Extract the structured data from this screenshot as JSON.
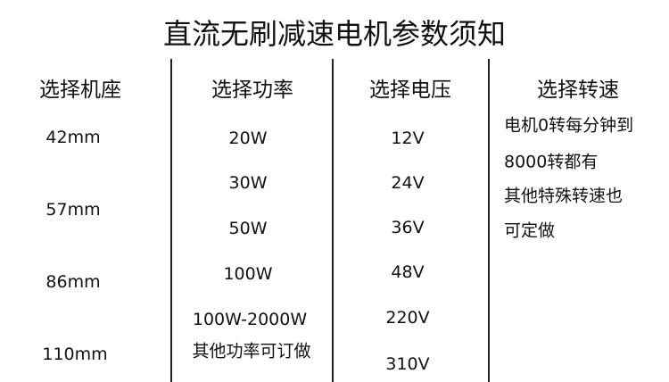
{
  "title": "直流无刷减速电机参数须知",
  "columns": [
    {
      "header": "选择机座",
      "values": [
        "42mm",
        "57mm",
        "86mm",
        "110mm"
      ]
    },
    {
      "header": "选择功率",
      "values": [
        "20W",
        "30W",
        "50W",
        "100W",
        "100W-2000W",
        "其他功率可订做"
      ]
    },
    {
      "header": "选择电压",
      "values": [
        "12V",
        "24V",
        "36V",
        "48V",
        "220V",
        "310V"
      ]
    },
    {
      "header": "选择转速",
      "values": [
        "电机0转每分钟到",
        "8000转都有",
        "其他特殊转速也",
        "可定做"
      ]
    }
  ]
}
